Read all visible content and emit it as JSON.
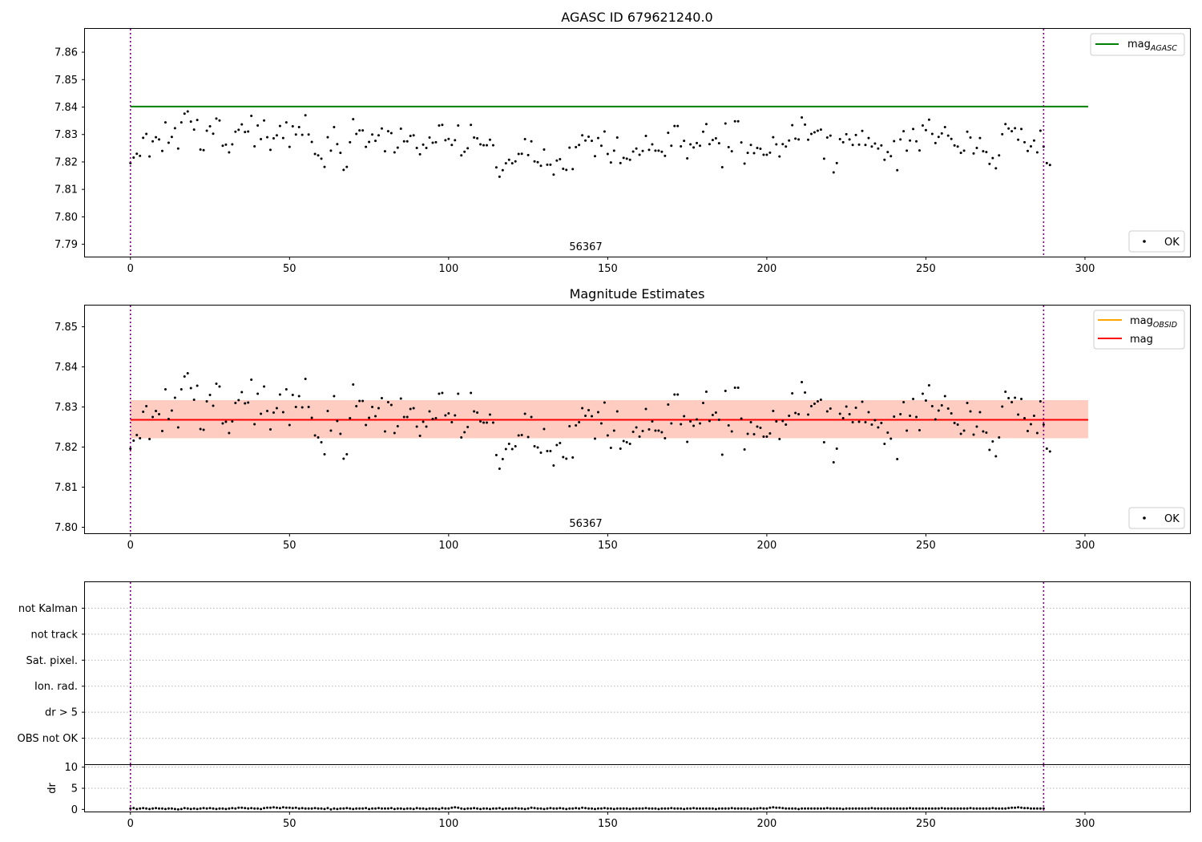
{
  "colors": {
    "points": "#000000",
    "mag_agasc": "#008000",
    "mag_obsid": "#ffa500",
    "mag": "#ff0000",
    "band_outer": "#ffc0cb",
    "band_inner": "#ffa07a",
    "vlines": "#800080",
    "grid": "#b0b0b0"
  },
  "chart_data": [
    {
      "id": "agasc",
      "type": "scatter",
      "title": "AGASC ID 679621240.0",
      "xlim": [
        -14.3,
        333
      ],
      "ylim": [
        7.7855,
        7.8685
      ],
      "xticks": [
        0,
        50,
        100,
        150,
        200,
        250,
        300
      ],
      "yticks": [
        7.79,
        7.8,
        7.81,
        7.82,
        7.83,
        7.84,
        7.85,
        7.86
      ],
      "ytick_labels": [
        "7.79",
        "7.80",
        "7.81",
        "7.82",
        "7.83",
        "7.84",
        "7.85",
        "7.86"
      ],
      "vlines": [
        0,
        287
      ],
      "annotation": {
        "text": "56367",
        "x": 143,
        "y": 7.7875
      },
      "lines": [
        {
          "name": "mag_AGASC",
          "label_main": "mag",
          "label_sub": "AGASC",
          "y": 7.8402,
          "x": [
            0,
            301
          ],
          "color": "#008000"
        }
      ],
      "series": [
        {
          "name": "OK",
          "source": "magnitudes"
        }
      ],
      "legend_top": [
        {
          "main": "mag",
          "sub": "AGASC",
          "color": "#008000"
        }
      ],
      "legend_bottom": [
        {
          "main": "OK",
          "color": "#000000"
        }
      ]
    },
    {
      "id": "estimates",
      "type": "scatter",
      "title": "Magnitude Estimates",
      "xlim": [
        -14.3,
        333
      ],
      "ylim": [
        7.7985,
        7.8553
      ],
      "xticks": [
        0,
        50,
        100,
        150,
        200,
        250,
        300
      ],
      "yticks": [
        7.8,
        7.81,
        7.82,
        7.83,
        7.84,
        7.85
      ],
      "ytick_labels": [
        "7.80",
        "7.81",
        "7.82",
        "7.83",
        "7.84",
        "7.85"
      ],
      "vlines": [
        0,
        287
      ],
      "annotation": {
        "text": "56367",
        "x": 143,
        "y": 7.8005
      },
      "bands": [
        {
          "y0": 7.8222,
          "y1": 7.8317,
          "x": [
            0,
            301
          ],
          "color": "#ffc0cb",
          "opacity": 0.45
        },
        {
          "y0": 7.8222,
          "y1": 7.8317,
          "x": [
            0,
            301
          ],
          "color": "#ffa07a",
          "opacity": 0.35
        }
      ],
      "lines": [
        {
          "name": "mag_OBSID",
          "y": 7.8268,
          "x": [
            0,
            301
          ],
          "color": "#ffa500"
        },
        {
          "name": "mag",
          "y": 7.8268,
          "x": [
            0,
            301
          ],
          "color": "#ff0000"
        }
      ],
      "series": [
        {
          "name": "OK",
          "source": "magnitudes"
        }
      ],
      "legend_top": [
        {
          "main": "mag",
          "sub": "OBSID",
          "color": "#ffa500"
        },
        {
          "main": "mag",
          "sub": "",
          "color": "#ff0000"
        }
      ],
      "legend_bottom": [
        {
          "main": "OK",
          "color": "#000000"
        }
      ]
    },
    {
      "id": "flags",
      "type": "scatter",
      "xlim": [
        -14.3,
        333
      ],
      "categories": [
        "OBS not OK",
        "dr > 5",
        "Ion. rad.",
        "Sat. pixel.",
        "not track",
        "not Kalman"
      ],
      "flag_points": [],
      "vlines": [
        0,
        287
      ]
    },
    {
      "id": "dr",
      "type": "scatter",
      "ylabel": "dr",
      "xlim": [
        -14.3,
        333
      ],
      "ylim": [
        -0.5,
        10.5
      ],
      "xticks": [
        0,
        50,
        100,
        150,
        200,
        250,
        300
      ],
      "yticks": [
        0,
        5,
        10
      ],
      "ytick_labels": [
        "0",
        "5",
        "10"
      ],
      "vlines": [
        0,
        287
      ],
      "y": [
        0.2,
        0.3,
        0.1,
        0.2,
        0.3,
        0.2,
        0.1,
        0.2,
        0.3,
        0.2,
        0.2,
        0.1,
        0.2,
        0.2,
        0.1,
        0.0,
        0.1,
        0.3,
        0.2,
        0.1,
        0.2,
        0.1,
        0.2,
        0.3,
        0.2,
        0.3,
        0.2,
        0.1,
        0.2,
        0.2,
        0.1,
        0.2,
        0.3,
        0.2,
        0.4,
        0.4,
        0.3,
        0.2,
        0.3,
        0.2,
        0.2,
        0.1,
        0.3,
        0.4,
        0.4,
        0.5,
        0.4,
        0.3,
        0.5,
        0.4,
        0.4,
        0.3,
        0.4,
        0.2,
        0.3,
        0.2,
        0.2,
        0.2,
        0.3,
        0.2,
        0.2,
        0.1,
        0.3,
        0.0,
        0.2,
        0.1,
        0.2,
        0.2,
        0.3,
        0.2,
        0.1,
        0.2,
        0.2,
        0.2,
        0.3,
        0.1,
        0.2,
        0.2,
        0.3,
        0.2,
        0.2,
        0.2,
        0.3,
        0.1,
        0.2,
        0.2,
        0.1,
        0.2,
        0.2,
        0.1,
        0.3,
        0.2,
        0.2,
        0.1,
        0.2,
        0.2,
        0.2,
        0.1,
        0.3,
        0.2,
        0.2,
        0.4,
        0.5,
        0.4,
        0.2,
        0.1,
        0.2,
        0.2,
        0.3,
        0.2,
        0.1,
        0.2,
        0.2,
        0.1,
        0.2,
        0.2,
        0.3,
        0.1,
        0.2,
        0.2,
        0.2,
        0.3,
        0.2,
        0.2,
        0.1,
        0.2,
        0.4,
        0.3,
        0.2,
        0.2,
        0.1,
        0.2,
        0.3,
        0.2,
        0.2,
        0.3,
        0.2,
        0.1,
        0.2,
        0.2,
        0.3,
        0.2,
        0.4,
        0.3,
        0.2,
        0.2,
        0.1,
        0.2,
        0.2,
        0.3,
        0.2,
        0.2,
        0.1,
        0.2,
        0.2,
        0.2,
        0.2,
        0.1,
        0.2,
        0.2,
        0.2,
        0.2,
        0.3,
        0.2,
        0.2,
        0.2,
        0.1,
        0.2,
        0.2,
        0.2,
        0.3,
        0.2,
        0.2,
        0.2,
        0.1,
        0.2,
        0.2,
        0.3,
        0.2,
        0.2,
        0.2,
        0.2,
        0.2,
        0.2,
        0.1,
        0.2,
        0.2,
        0.2,
        0.2,
        0.3,
        0.2,
        0.2,
        0.2,
        0.2,
        0.2,
        0.1,
        0.2,
        0.2,
        0.3,
        0.2,
        0.2,
        0.4,
        0.5,
        0.4,
        0.4,
        0.3,
        0.2,
        0.2,
        0.2,
        0.2,
        0.1,
        0.2,
        0.2,
        0.2,
        0.2,
        0.2,
        0.2,
        0.2,
        0.2,
        0.3,
        0.2,
        0.2,
        0.2,
        0.2,
        0.1,
        0.2,
        0.2,
        0.2,
        0.2,
        0.2,
        0.2,
        0.2,
        0.2,
        0.3,
        0.2,
        0.2,
        0.2,
        0.2,
        0.2,
        0.2,
        0.2,
        0.2,
        0.2,
        0.2,
        0.2,
        0.3,
        0.2,
        0.2,
        0.2,
        0.2,
        0.2,
        0.2,
        0.2,
        0.2,
        0.2,
        0.3,
        0.2,
        0.2,
        0.2,
        0.2,
        0.2,
        0.2,
        0.2,
        0.2,
        0.3,
        0.2,
        0.2,
        0.2,
        0.2,
        0.2,
        0.2,
        0.3,
        0.2,
        0.2,
        0.2,
        0.2,
        0.3,
        0.4,
        0.4,
        0.5,
        0.4,
        0.3,
        0.3,
        0.2,
        0.2,
        0.2,
        0.2,
        0.2
      ]
    }
  ],
  "magnitudes": [
    7.8196,
    7.8216,
    7.823,
    7.8222,
    7.8288,
    7.8302,
    7.822,
    7.8275,
    7.829,
    7.8282,
    7.824,
    7.8344,
    7.827,
    7.8291,
    7.8323,
    7.8249,
    7.8344,
    7.8376,
    7.8384,
    7.8347,
    7.8318,
    7.8353,
    7.8245,
    7.8243,
    7.8314,
    7.833,
    7.8303,
    7.8358,
    7.8351,
    7.8259,
    7.8263,
    7.8235,
    7.8264,
    7.831,
    7.8317,
    7.8337,
    7.8309,
    7.8311,
    7.8368,
    7.8257,
    7.8333,
    7.8283,
    7.8351,
    7.829,
    7.8244,
    7.8286,
    7.8297,
    7.8331,
    7.8287,
    7.8344,
    7.8255,
    7.833,
    7.83,
    7.8327,
    7.8299,
    7.837,
    7.83,
    7.8273,
    7.8229,
    7.8224,
    7.8212,
    7.8182,
    7.829,
    7.8241,
    7.8327,
    7.8265,
    7.8233,
    7.8171,
    7.8182,
    7.8272,
    7.8356,
    7.8302,
    7.8315,
    7.8315,
    7.8255,
    7.8273,
    7.83,
    7.8277,
    7.8297,
    7.8322,
    7.8239,
    7.8312,
    7.8305,
    7.8235,
    7.8252,
    7.8321,
    7.8275,
    7.8275,
    7.8295,
    7.8297,
    7.8251,
    7.8228,
    7.8263,
    7.8251,
    7.8289,
    7.827,
    7.8272,
    7.8333,
    7.8335,
    7.8279,
    7.8284,
    7.8262,
    7.8279,
    7.8333,
    7.8224,
    7.8237,
    7.825,
    7.8335,
    7.8289,
    7.8286,
    7.8264,
    7.8261,
    7.8261,
    7.8281,
    7.8261,
    7.818,
    7.8146,
    7.817,
    7.8195,
    7.8208,
    7.8195,
    7.8202,
    7.8229,
    7.823,
    7.8283,
    7.8225,
    7.8275,
    7.8202,
    7.8199,
    7.8186,
    7.8245,
    7.819,
    7.819,
    7.8154,
    7.8205,
    7.821,
    7.8175,
    7.8171,
    7.8252,
    7.8174,
    7.8254,
    7.8262,
    7.8297,
    7.8278,
    7.8292,
    7.8277,
    7.8221,
    7.8287,
    7.8259,
    7.8311,
    7.8229,
    7.8198,
    7.8241,
    7.8289,
    7.8196,
    7.8215,
    7.8212,
    7.8208,
    7.8238,
    7.8249,
    7.8226,
    7.824,
    7.8295,
    7.8244,
    7.8264,
    7.8241,
    7.8241,
    7.8237,
    7.8222,
    7.8306,
    7.8259,
    7.8331,
    7.8331,
    7.8257,
    7.8277,
    7.8213,
    7.8264,
    7.8253,
    7.8269,
    7.8259,
    7.831,
    7.8338,
    7.8265,
    7.828,
    7.8286,
    7.8268,
    7.8181,
    7.834,
    7.8254,
    7.8239,
    7.8348,
    7.8348,
    7.8271,
    7.8194,
    7.8233,
    7.8262,
    7.8232,
    7.8251,
    7.8248,
    7.8226,
    7.8226,
    7.8234,
    7.829,
    7.8264,
    7.822,
    7.8265,
    7.8256,
    7.8278,
    7.8334,
    7.8285,
    7.8282,
    7.8362,
    7.8336,
    7.8281,
    7.8302,
    7.8308,
    7.8314,
    7.8318,
    7.8212,
    7.8289,
    7.8296,
    7.8162,
    7.8196,
    7.8283,
    7.8272,
    7.8301,
    7.8282,
    7.8262,
    7.8298,
    7.8263,
    7.8313,
    7.8262,
    7.8287,
    7.8256,
    7.8267,
    7.8249,
    7.826,
    7.8208,
    7.8236,
    7.8221,
    7.8276,
    7.817,
    7.8282,
    7.8312,
    7.8241,
    7.8278,
    7.832,
    7.8275,
    7.8242,
    7.8333,
    7.8316,
    7.8354,
    7.8302,
    7.8269,
    7.8291,
    7.8304,
    7.8327,
    7.8296,
    7.8284,
    7.826,
    7.8256,
    7.8233,
    7.8241,
    7.831,
    7.8289,
    7.8231,
    7.8251,
    7.8287,
    7.8239,
    7.8236,
    7.8193,
    7.8214,
    7.8177,
    7.8224,
    7.8301,
    7.8338,
    7.8322,
    7.8312,
    7.8323,
    7.8281,
    7.832,
    7.8272,
    7.824,
    7.8257,
    7.8278,
    7.8235,
    7.8314,
    7.8256,
    7.8196,
    7.8189
  ]
}
